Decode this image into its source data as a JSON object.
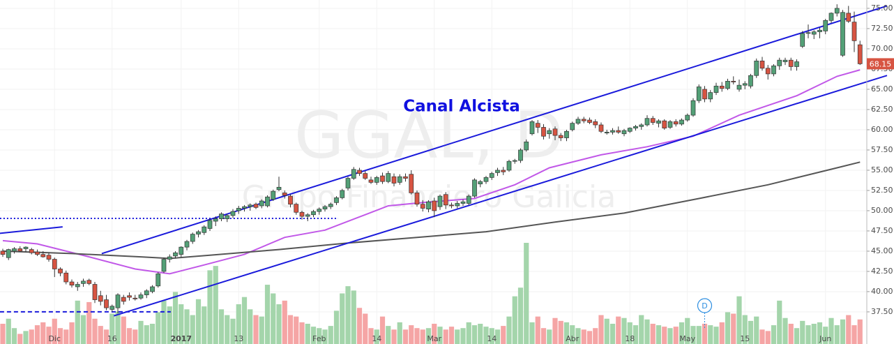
{
  "chart_data": {
    "type": "candlestick",
    "title": "GGAL, D",
    "subtitle": "Grupo Financiero Galicia",
    "annotation": "Canal Alcista",
    "markers": [
      {
        "x": 122,
        "label": "D"
      }
    ],
    "up_color": "#53a077",
    "down_color": "#d75442",
    "grid": true,
    "ylim": [
      33.53,
      76.03
    ],
    "yticks": [
      {
        "value": 37.5,
        "label": "37.50"
      },
      {
        "value": 40,
        "label": "40.00"
      },
      {
        "value": 42.5,
        "label": "42.50"
      },
      {
        "value": 45,
        "label": "45.00"
      },
      {
        "value": 47.5,
        "label": "47.50"
      },
      {
        "value": 50,
        "label": "50.00"
      },
      {
        "value": 52.5,
        "label": "52.50"
      },
      {
        "value": 55,
        "label": "55.00"
      },
      {
        "value": 57.5,
        "label": "57.50"
      },
      {
        "value": 60,
        "label": "60.00"
      },
      {
        "value": 62.5,
        "label": "62.50"
      },
      {
        "value": 65,
        "label": "65.00"
      },
      {
        "value": 67.5,
        "label": "67.50"
      },
      {
        "value": 70,
        "label": "70.00"
      },
      {
        "value": 72.5,
        "label": "72.50"
      },
      {
        "value": 75,
        "label": "75.00"
      }
    ],
    "categories": [
      null,
      null,
      null,
      null,
      null,
      null,
      null,
      null,
      null,
      "Dic",
      null,
      null,
      null,
      null,
      null,
      null,
      null,
      null,
      null,
      "16",
      null,
      null,
      null,
      null,
      null,
      null,
      null,
      null,
      null,
      null,
      null,
      "2017",
      null,
      null,
      null,
      null,
      null,
      null,
      null,
      null,
      null,
      "13",
      null,
      null,
      null,
      null,
      null,
      null,
      null,
      null,
      null,
      null,
      null,
      null,
      null,
      "Feb",
      null,
      null,
      null,
      null,
      null,
      null,
      null,
      null,
      null,
      "14",
      null,
      null,
      null,
      null,
      null,
      null,
      null,
      null,
      null,
      "Mar",
      null,
      null,
      null,
      null,
      null,
      null,
      null,
      null,
      null,
      "14",
      null,
      null,
      null,
      null,
      null,
      null,
      null,
      null,
      null,
      null,
      null,
      null,
      null,
      "Abr",
      null,
      null,
      null,
      null,
      null,
      null,
      null,
      null,
      null,
      "18",
      null,
      null,
      null,
      null,
      null,
      null,
      null,
      null,
      null,
      "May",
      null,
      null,
      null,
      null,
      null,
      null,
      null,
      null,
      null,
      "15",
      null,
      null,
      null,
      null,
      null,
      null,
      null,
      null,
      null,
      null,
      null,
      null,
      null,
      "Jun",
      null,
      null,
      null,
      null,
      null,
      null
    ],
    "open": [
      45.0,
      44.2,
      45.0,
      45.3,
      45.3,
      45.2,
      44.9,
      44.6,
      44.5,
      44.0,
      42.8,
      42.3,
      41.2,
      40.6,
      41.0,
      41.4,
      40.9,
      39.5,
      39.0,
      37.8,
      38.0,
      39.3,
      39.5,
      39.2,
      39.2,
      39.6,
      40.0,
      40.7,
      42.5,
      44.0,
      44.4,
      44.6,
      45.5,
      46.2,
      47.1,
      47.3,
      47.8,
      48.7,
      49.0,
      49.0,
      49.4,
      50.0,
      50.3,
      50.5,
      50.8,
      50.6,
      50.6,
      51.4,
      52.6,
      52.2,
      51.8,
      50.8,
      49.8,
      49.3,
      49.5,
      49.9,
      50.2,
      50.5,
      51.0,
      51.6,
      52.8,
      54.0,
      55.0,
      54.6,
      53.8,
      53.5,
      54.3,
      53.6,
      54.2,
      53.5,
      54.2,
      54.5,
      52.2,
      50.8,
      50.2,
      51.2,
      50.5,
      52.0,
      50.7,
      50.6,
      50.9,
      50.9,
      51.8,
      53.3,
      53.6,
      54.1,
      54.7,
      55.0,
      55.0,
      56.1,
      56.2,
      57.5,
      59.5,
      60.8,
      60.3,
      59.5,
      60.1,
      59.3,
      59.0,
      60.0,
      60.8,
      61.3,
      61.2,
      61.0,
      60.6,
      59.6,
      59.7,
      59.9,
      59.5,
      59.8,
      60.2,
      60.4,
      60.6,
      61.4,
      60.8,
      61.1,
      60.3,
      61.0,
      60.7,
      61.2,
      61.8,
      63.6,
      65.0,
      63.8,
      64.6,
      65.4,
      65.1,
      66.0,
      65.0,
      65.5,
      65.4,
      66.7,
      68.5,
      67.6,
      66.9,
      67.9,
      68.4,
      68.6,
      67.8,
      70.3,
      71.9,
      71.8,
      72.1,
      72.2,
      73.5,
      74.4,
      69.2,
      74.4,
      73.3,
      70.5
    ],
    "high": [
      45.3,
      45.3,
      45.5,
      45.6,
      45.6,
      45.4,
      45.2,
      45.0,
      44.8,
      44.2,
      43.0,
      42.6,
      41.5,
      41.2,
      41.6,
      41.6,
      41.2,
      40.1,
      39.6,
      38.4,
      39.8,
      39.6,
      39.9,
      39.6,
      39.9,
      40.3,
      40.8,
      42.4,
      44.2,
      44.6,
      45.0,
      45.6,
      46.4,
      47.3,
      47.6,
      48.2,
      49.0,
      49.3,
      49.8,
      49.6,
      50.2,
      50.6,
      50.7,
      50.9,
      51.0,
      51.4,
      51.9,
      52.6,
      54.2,
      52.5,
      52.0,
      51.0,
      50.0,
      49.7,
      50.1,
      50.4,
      50.7,
      51.0,
      51.8,
      52.7,
      54.2,
      55.4,
      55.3,
      54.9,
      54.2,
      54.3,
      54.7,
      54.9,
      54.6,
      54.5,
      54.6,
      55.0,
      52.5,
      51.3,
      51.3,
      51.6,
      52.0,
      52.3,
      51.0,
      51.2,
      51.4,
      52.0,
      54.0,
      53.8,
      54.3,
      54.8,
      55.3,
      55.4,
      56.3,
      56.4,
      57.7,
      58.8,
      61.2,
      61.2,
      60.7,
      60.2,
      60.4,
      59.6,
      60.0,
      61.0,
      61.6,
      61.6,
      61.5,
      61.3,
      60.9,
      60.0,
      60.2,
      60.4,
      60.1,
      60.3,
      60.6,
      60.8,
      61.8,
      61.7,
      61.3,
      61.3,
      61.2,
      61.3,
      61.4,
      62.0,
      63.9,
      65.6,
      65.4,
      64.9,
      65.8,
      65.9,
      66.3,
      66.6,
      66.2,
      66.0,
      66.9,
      68.8,
      69.0,
      68.0,
      68.1,
      68.9,
      68.9,
      68.9,
      68.7,
      72.2,
      73.0,
      72.3,
      72.6,
      73.7,
      74.5,
      75.5,
      74.8,
      75.3,
      74.6,
      71.0
    ],
    "low": [
      44.3,
      43.9,
      44.7,
      44.9,
      44.9,
      44.6,
      44.4,
      44.2,
      43.7,
      41.8,
      41.9,
      40.9,
      40.5,
      40.1,
      40.6,
      40.8,
      38.6,
      38.3,
      37.7,
      37.5,
      37.3,
      38.4,
      38.9,
      38.9,
      39.0,
      39.2,
      39.8,
      40.5,
      42.3,
      43.6,
      44.1,
      44.3,
      45.1,
      45.9,
      46.7,
      47.0,
      47.5,
      48.1,
      48.7,
      48.6,
      49.1,
      49.6,
      49.9,
      50.0,
      50.2,
      50.3,
      50.4,
      51.2,
      52.4,
      51.5,
      50.4,
      49.5,
      48.9,
      48.7,
      49.2,
      49.5,
      49.9,
      50.2,
      50.7,
      51.4,
      52.5,
      53.8,
      54.3,
      53.8,
      53.3,
      53.2,
      53.3,
      53.4,
      53.0,
      53.2,
      53.6,
      52.0,
      50.5,
      49.9,
      49.8,
      49.2,
      50.1,
      50.2,
      50.3,
      50.3,
      50.6,
      50.7,
      51.6,
      52.9,
      53.3,
      53.8,
      54.3,
      54.4,
      54.8,
      55.8,
      55.9,
      57.3,
      59.3,
      59.6,
      58.8,
      58.9,
      58.7,
      58.6,
      58.6,
      59.8,
      60.6,
      60.8,
      60.7,
      60.2,
      59.6,
      59.4,
      59.4,
      59.5,
      59.2,
      59.6,
      59.9,
      60.0,
      60.4,
      60.6,
      60.3,
      60.0,
      60.1,
      60.4,
      60.5,
      61.0,
      61.6,
      63.3,
      63.4,
      63.4,
      64.3,
      64.7,
      64.9,
      65.6,
      64.7,
      65.0,
      65.1,
      66.4,
      67.3,
      66.2,
      66.6,
      67.4,
      68.0,
      67.3,
      67.3,
      70.1,
      71.3,
      71.2,
      71.3,
      71.8,
      73.2,
      74.0,
      69.0,
      73.2,
      69.6,
      68.0
    ],
    "close": [
      44.6,
      45.2,
      45.3,
      45.0,
      45.5,
      44.8,
      44.6,
      44.3,
      44.0,
      42.8,
      42.3,
      41.2,
      40.8,
      40.9,
      41.3,
      41.0,
      39.0,
      38.8,
      38.0,
      38.2,
      39.6,
      38.8,
      39.3,
      39.1,
      39.6,
      40.1,
      40.6,
      42.2,
      44.0,
      44.3,
      44.8,
      45.5,
      46.2,
      47.1,
      47.4,
      48.0,
      48.8,
      49.0,
      49.6,
      49.4,
      49.9,
      50.3,
      50.5,
      50.7,
      50.4,
      51.2,
      51.7,
      52.4,
      52.9,
      51.9,
      50.8,
      49.8,
      49.3,
      49.5,
      49.9,
      50.2,
      50.5,
      50.8,
      51.6,
      52.5,
      54.0,
      55.1,
      54.6,
      54.0,
      53.5,
      54.1,
      53.6,
      54.6,
      53.4,
      54.2,
      54.0,
      52.2,
      50.8,
      50.3,
      51.1,
      50.0,
      51.8,
      50.7,
      50.6,
      50.9,
      51.1,
      51.8,
      53.8,
      53.6,
      54.1,
      54.6,
      55.0,
      54.8,
      56.1,
      56.2,
      57.5,
      58.5,
      61.0,
      60.3,
      59.2,
      59.9,
      59.3,
      59.0,
      59.8,
      60.8,
      61.3,
      61.1,
      60.9,
      60.6,
      59.8,
      59.7,
      59.9,
      59.7,
      59.9,
      60.2,
      60.4,
      60.6,
      61.4,
      60.9,
      61.1,
      60.2,
      61.0,
      60.7,
      61.2,
      61.8,
      63.6,
      65.3,
      63.8,
      64.6,
      65.4,
      65.1,
      66.0,
      65.9,
      65.5,
      65.7,
      66.7,
      68.5,
      67.6,
      66.9,
      67.9,
      68.6,
      68.6,
      67.8,
      68.4,
      71.9,
      72.0,
      72.1,
      72.3,
      73.5,
      74.4,
      75.0,
      74.5,
      73.4,
      71.0,
      68.15
    ],
    "volume": [
      28,
      35,
      22,
      14,
      18,
      20,
      26,
      30,
      24,
      35,
      22,
      20,
      30,
      60,
      40,
      58,
      35,
      25,
      20,
      42,
      45,
      38,
      22,
      20,
      32,
      26,
      28,
      44,
      60,
      52,
      72,
      55,
      48,
      40,
      62,
      52,
      102,
      108,
      48,
      40,
      35,
      55,
      65,
      48,
      40,
      38,
      82,
      70,
      55,
      60,
      40,
      38,
      30,
      28,
      24,
      22,
      20,
      25,
      46,
      70,
      80,
      74,
      50,
      42,
      22,
      20,
      38,
      25,
      20,
      30,
      20,
      26,
      22,
      20,
      22,
      28,
      24,
      20,
      24,
      20,
      22,
      30,
      26,
      28,
      24,
      22,
      20,
      25,
      38,
      66,
      78,
      140,
      30,
      38,
      22,
      20,
      36,
      32,
      30,
      26,
      22,
      20,
      18,
      22,
      40,
      35,
      28,
      38,
      36,
      30,
      26,
      40,
      34,
      28,
      26,
      24,
      22,
      24,
      30,
      36,
      25,
      25,
      28,
      26,
      24,
      30,
      44,
      42,
      66,
      40,
      32,
      38,
      20,
      18,
      26,
      60,
      36,
      28,
      22,
      32,
      26,
      28,
      30,
      24,
      36,
      26,
      34,
      40,
      26,
      34
    ],
    "moving_averages": [
      {
        "color": "#c158e8",
        "x": [
          0,
          6,
          15,
          23,
          29,
          35,
          42,
          49,
          56,
          63,
          67,
          73,
          82,
          89,
          95,
          104,
          112,
          120,
          128,
          138,
          145,
          149
        ],
        "values": [
          46.3,
          45.9,
          44.3,
          42.8,
          42.2,
          43.3,
          44.6,
          46.7,
          47.6,
          49.5,
          50.6,
          51.0,
          51.5,
          53.2,
          55.3,
          56.9,
          57.9,
          59.2,
          61.8,
          64.2,
          66.6,
          67.4
        ]
      },
      {
        "color": "#555555",
        "x": [
          0,
          12,
          24,
          29,
          36,
          48,
          60,
          72,
          84,
          96,
          108,
          121,
          133,
          145,
          149
        ],
        "values": [
          45.0,
          44.7,
          44.3,
          44.1,
          44.5,
          45.2,
          46.0,
          46.7,
          47.4,
          48.6,
          49.7,
          51.5,
          53.2,
          55.3,
          56.0
        ]
      }
    ],
    "trendlines": [
      {
        "color": "#1a1adb",
        "style": "solid",
        "x": [
          17.2,
          153.7
        ],
        "values": [
          44.7,
          75.3
        ]
      },
      {
        "color": "#1a1adb",
        "style": "solid",
        "x": [
          19.3,
          153.7
        ],
        "values": [
          37.0,
          66.7
        ]
      },
      {
        "color": "#1a1adb",
        "style": "solid",
        "x": [
          -0.5,
          10.4
        ],
        "values": [
          47.2,
          48.0
        ]
      },
      {
        "color": "#1a1adb",
        "style": "dotted",
        "x": [
          -0.5,
          58.3
        ],
        "values": [
          49.05,
          49.05
        ]
      },
      {
        "color": "#1a1adb",
        "style": "dashed",
        "x": [
          -0.5,
          29.2
        ],
        "values": [
          37.5,
          37.5
        ]
      }
    ]
  }
}
